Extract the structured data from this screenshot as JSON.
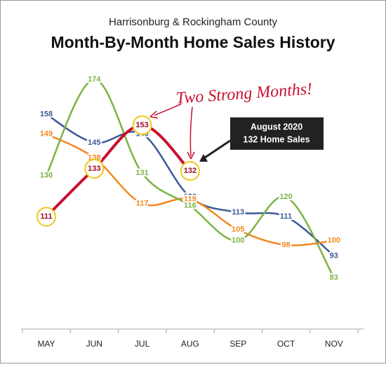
{
  "chart_data": {
    "type": "line",
    "subtitle": "Harrisonburg & Rockingham County",
    "title": "Month-By-Month Home Sales History",
    "categories": [
      "MAY",
      "JUN",
      "JUL",
      "AUG",
      "SEP",
      "OCT",
      "NOV"
    ],
    "series": [
      {
        "color": "#3b5998",
        "values": [
          158,
          145,
          149,
          120,
          113,
          111,
          93
        ]
      },
      {
        "color": "#f5871f",
        "values": [
          149,
          138,
          117,
          119,
          105,
          98,
          100
        ]
      },
      {
        "color": "#7cb342",
        "values": [
          130,
          174,
          131,
          116,
          100,
          120,
          83
        ]
      },
      {
        "color": "#c8102e",
        "values": [
          111,
          133,
          153,
          132,
          null,
          null,
          null
        ],
        "highlight": true
      }
    ],
    "annotation": "Two Strong Months!",
    "callout": [
      "August 2020",
      "132 Home Sales"
    ]
  }
}
